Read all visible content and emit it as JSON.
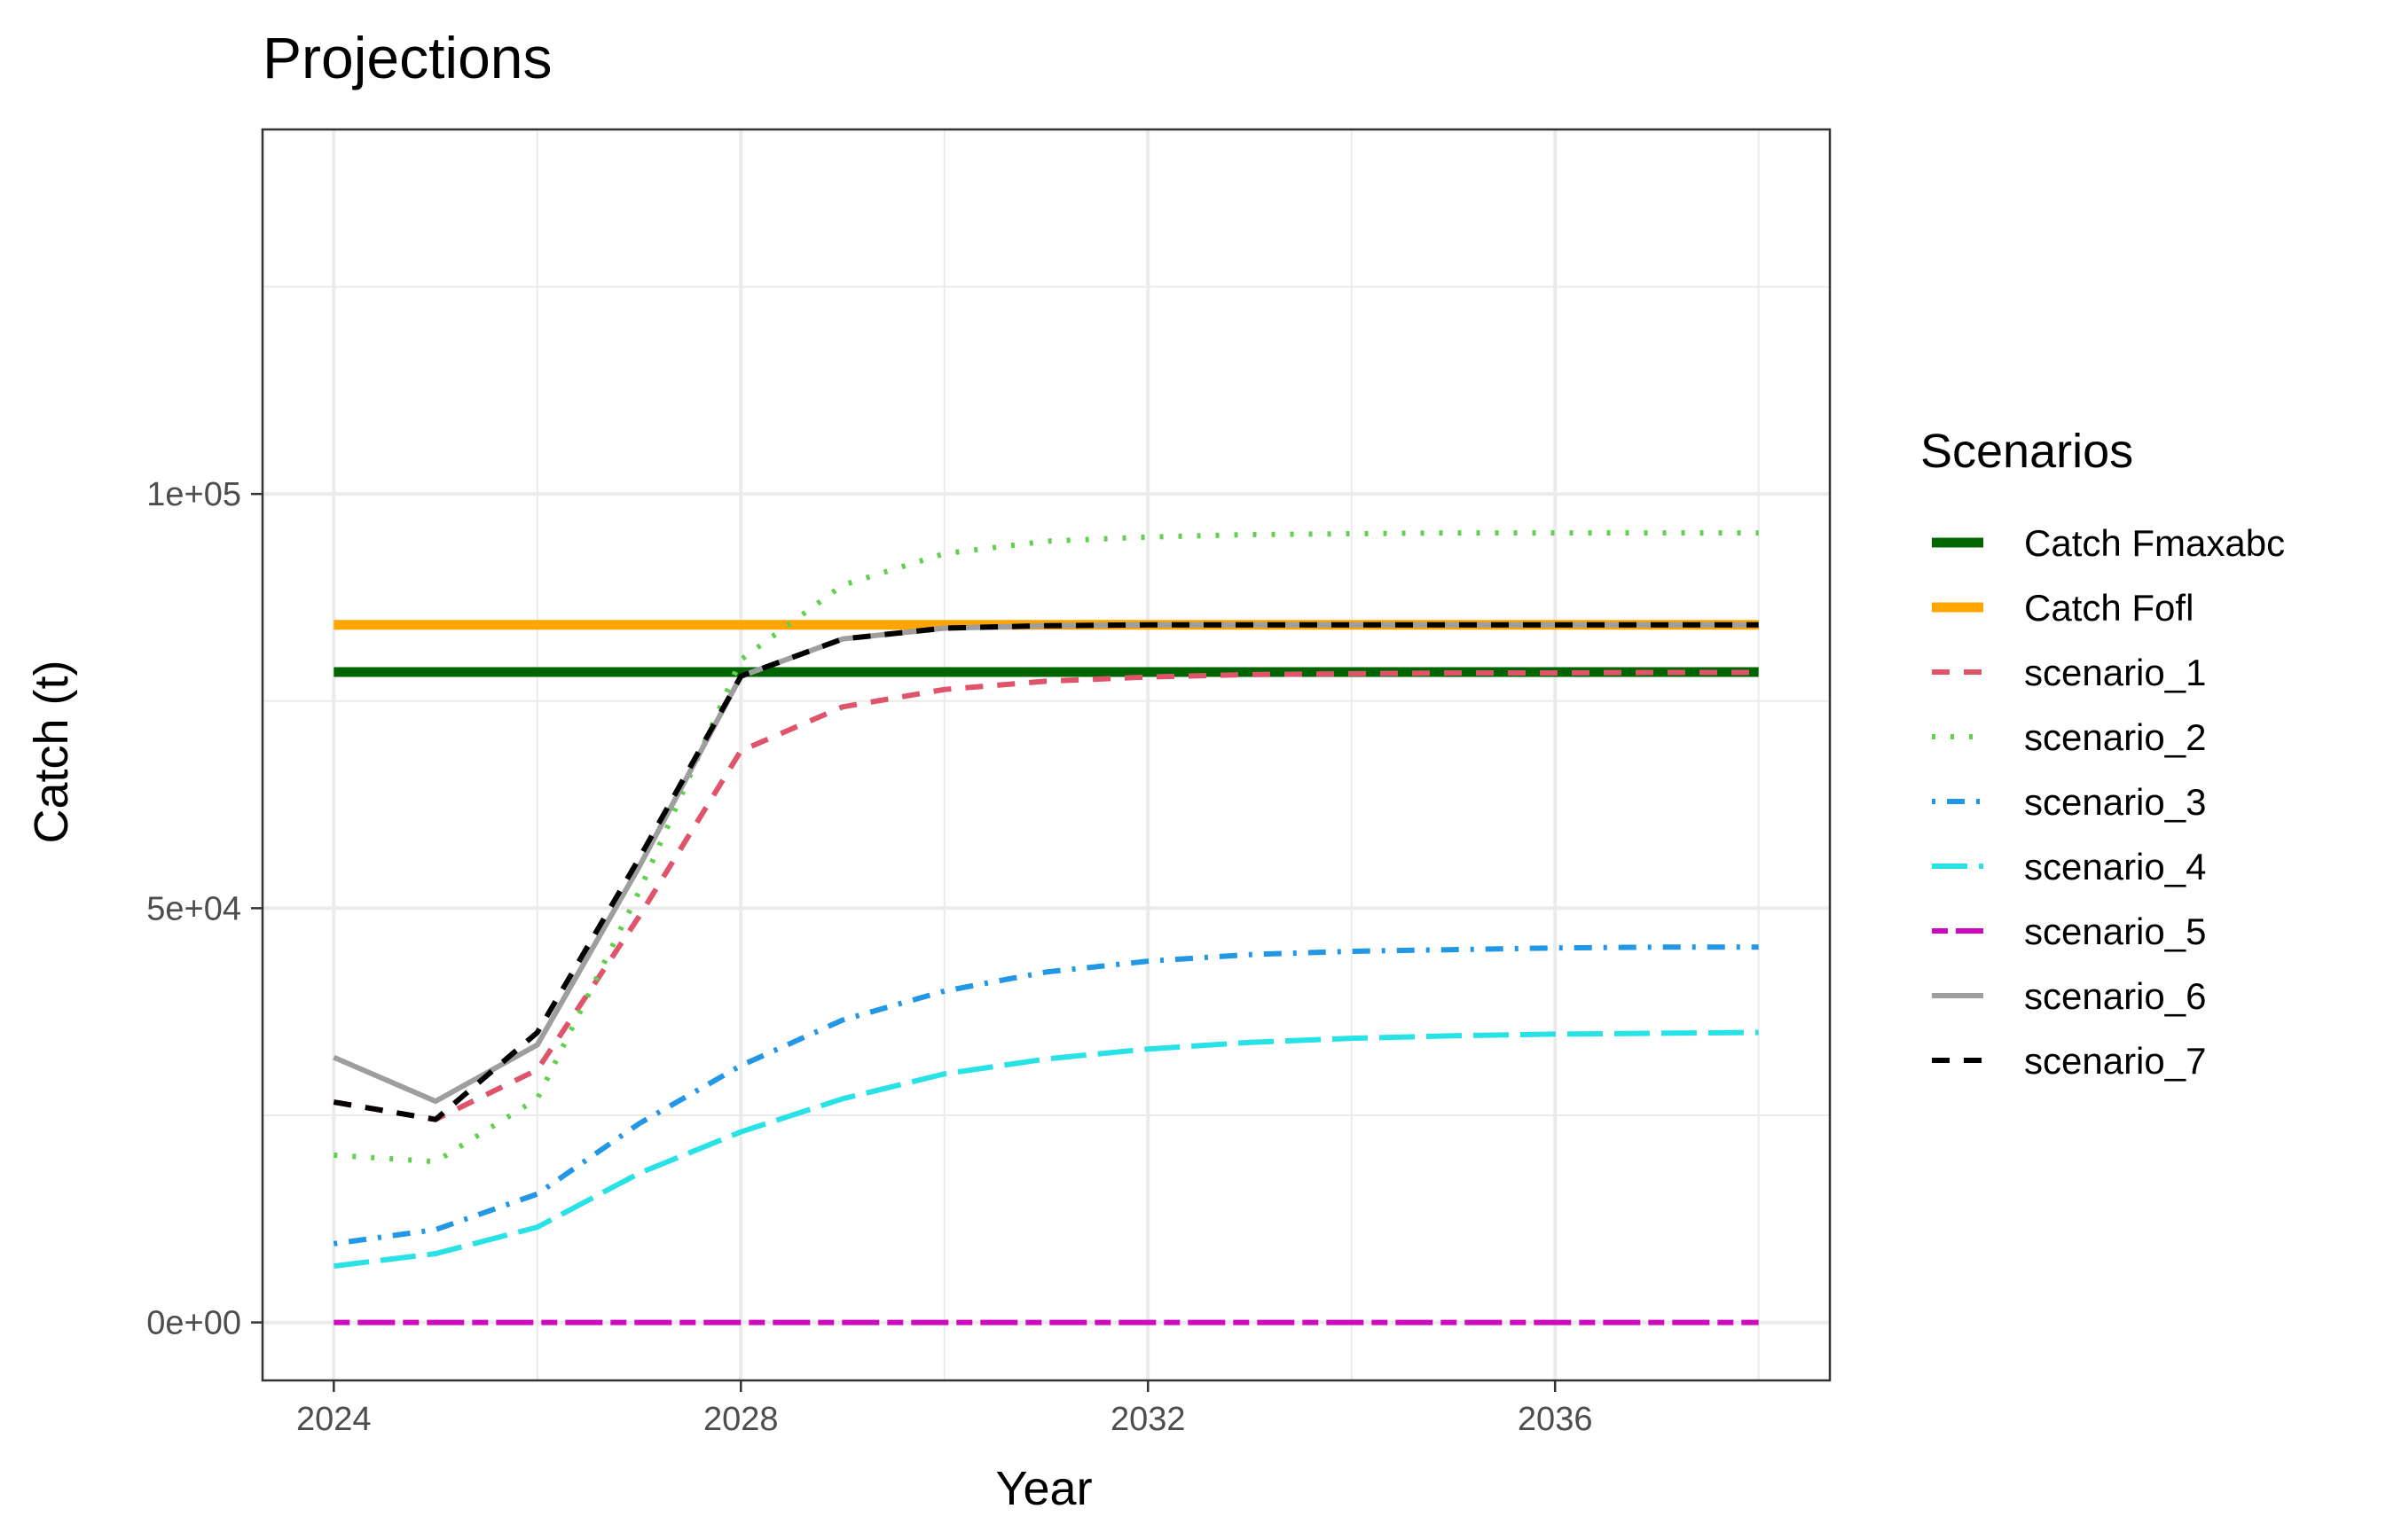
{
  "chart_data": {
    "type": "line",
    "title": "Projections",
    "xlabel": "Year",
    "ylabel": "Catch (t)",
    "xlim": [
      2023.3,
      2038.7
    ],
    "ylim": [
      -7000,
      144000
    ],
    "x_ticks": [
      2024,
      2028,
      2032,
      2036
    ],
    "x_tick_labels": [
      "2024",
      "2028",
      "2032",
      "2036"
    ],
    "y_ticks": [
      0,
      50000,
      100000
    ],
    "y_tick_labels": [
      "0e+00",
      "5e+04",
      "1e+05"
    ],
    "grid": true,
    "legend": {
      "title": "Scenarios",
      "position": "right"
    },
    "series": [
      {
        "name": "Catch Fmaxabc",
        "color": "#006400",
        "linestyle": "solid-thick",
        "x": [
          2024,
          2038
        ],
        "values": [
          78500,
          78500
        ]
      },
      {
        "name": "Catch Fofl",
        "color": "#FFA500",
        "linestyle": "solid-thick",
        "x": [
          2024,
          2038
        ],
        "values": [
          84200,
          84200
        ]
      },
      {
        "name": "scenario_1",
        "color": "#DF536B",
        "linestyle": "dashed",
        "x": [
          2024,
          2025,
          2026,
          2027,
          2028,
          2029,
          2030,
          2031,
          2032,
          2033,
          2034,
          2035,
          2036,
          2037,
          2038
        ],
        "values": [
          26600,
          24500,
          30500,
          49000,
          69000,
          74300,
          76400,
          77400,
          77900,
          78200,
          78300,
          78400,
          78400,
          78450,
          78450
        ]
      },
      {
        "name": "scenario_2",
        "color": "#61D04F",
        "linestyle": "dotted",
        "x": [
          2024,
          2025,
          2026,
          2027,
          2028,
          2029,
          2030,
          2031,
          2032,
          2033,
          2034,
          2035,
          2036,
          2037,
          2038
        ],
        "values": [
          20200,
          19400,
          27000,
          52000,
          80000,
          89000,
          92800,
          94300,
          94800,
          95100,
          95200,
          95300,
          95300,
          95300,
          95300
        ]
      },
      {
        "name": "scenario_3",
        "color": "#2297E6",
        "linestyle": "dotdash",
        "x": [
          2024,
          2025,
          2026,
          2027,
          2028,
          2029,
          2030,
          2031,
          2032,
          2033,
          2034,
          2035,
          2036,
          2037,
          2038
        ],
        "values": [
          9500,
          11200,
          15500,
          24000,
          31000,
          36500,
          40000,
          42300,
          43600,
          44400,
          44800,
          45000,
          45200,
          45300,
          45300
        ]
      },
      {
        "name": "scenario_4",
        "color": "#28E2E5",
        "linestyle": "longdash",
        "x": [
          2024,
          2025,
          2026,
          2027,
          2028,
          2029,
          2030,
          2031,
          2032,
          2033,
          2034,
          2035,
          2036,
          2037,
          2038
        ],
        "values": [
          6800,
          8300,
          11500,
          18000,
          23000,
          27000,
          30000,
          31800,
          33000,
          33800,
          34300,
          34600,
          34800,
          34900,
          35000
        ]
      },
      {
        "name": "scenario_5",
        "color": "#CD0BBC",
        "linestyle": "twodash",
        "x": [
          2024,
          2025,
          2026,
          2027,
          2028,
          2029,
          2030,
          2031,
          2032,
          2033,
          2034,
          2035,
          2036,
          2037,
          2038
        ],
        "values": [
          0,
          0,
          0,
          0,
          0,
          0,
          0,
          0,
          0,
          0,
          0,
          0,
          0,
          0,
          0
        ]
      },
      {
        "name": "scenario_6",
        "color": "#9E9E9E",
        "linestyle": "solid",
        "x": [
          2024,
          2025,
          2026,
          2027,
          2028,
          2029,
          2030,
          2031,
          2032,
          2033,
          2034,
          2035,
          2036,
          2037,
          2038
        ],
        "values": [
          32000,
          26700,
          33500,
          55000,
          78000,
          82500,
          83800,
          84100,
          84200,
          84200,
          84200,
          84200,
          84200,
          84200,
          84200
        ]
      },
      {
        "name": "scenario_7",
        "color": "#000000",
        "linestyle": "dashed",
        "x": [
          2024,
          2025,
          2026,
          2027,
          2028,
          2029,
          2030,
          2031,
          2032,
          2033,
          2034,
          2035,
          2036,
          2037,
          2038
        ],
        "values": [
          26600,
          24500,
          35000,
          56000,
          78000,
          82500,
          83800,
          84100,
          84200,
          84200,
          84200,
          84200,
          84200,
          84200,
          84200
        ]
      }
    ]
  }
}
